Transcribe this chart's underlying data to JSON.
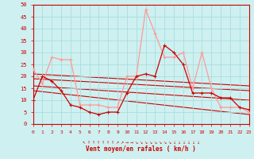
{
  "xlabel": "Vent moyen/en rafales ( km/h )",
  "xlim": [
    0,
    23
  ],
  "ylim": [
    0,
    50
  ],
  "yticks": [
    0,
    5,
    10,
    15,
    20,
    25,
    30,
    35,
    40,
    45,
    50
  ],
  "xticks": [
    0,
    1,
    2,
    3,
    4,
    5,
    6,
    7,
    8,
    9,
    10,
    11,
    12,
    13,
    14,
    15,
    16,
    17,
    18,
    19,
    20,
    21,
    22,
    23
  ],
  "bg_color": "#cef0f0",
  "grid_color": "#aadddd",
  "hours": [
    0,
    1,
    2,
    3,
    4,
    5,
    6,
    7,
    8,
    9,
    10,
    11,
    12,
    13,
    14,
    15,
    16,
    17,
    18,
    19,
    20,
    21,
    22,
    23
  ],
  "wind_avg": [
    10,
    20,
    18,
    14,
    8,
    7,
    5,
    4,
    5,
    5,
    13,
    20,
    21,
    20,
    33,
    30,
    25,
    13,
    13,
    13,
    11,
    11,
    7,
    6
  ],
  "wind_gust": [
    23,
    17,
    28,
    27,
    27,
    8,
    8,
    8,
    7,
    7,
    20,
    20,
    48,
    38,
    28,
    28,
    30,
    15,
    30,
    15,
    7,
    7,
    7,
    5
  ],
  "trend_lines": [
    [
      21,
      16
    ],
    [
      19,
      14
    ],
    [
      16,
      10
    ],
    [
      14,
      4
    ]
  ],
  "dark_red": "#cc0000",
  "light_pink": "#ff9999",
  "trend_color": "#cc0000"
}
